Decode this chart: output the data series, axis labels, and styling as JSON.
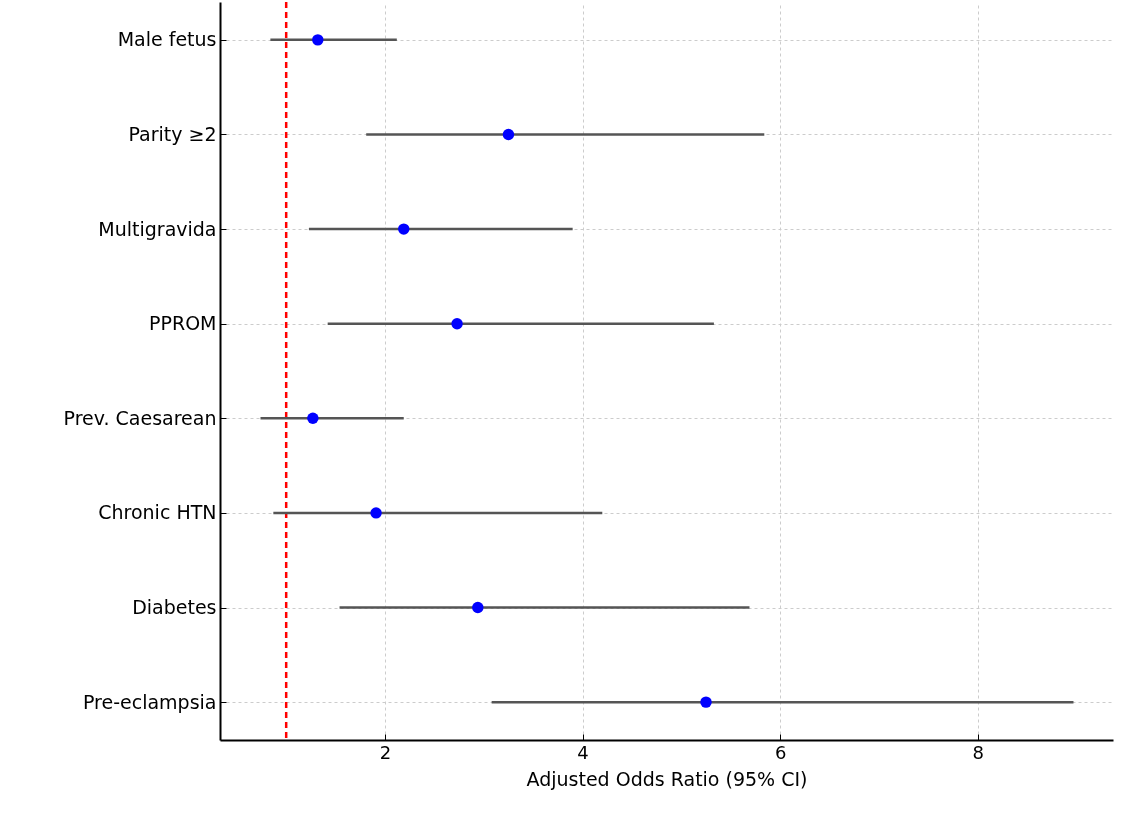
{
  "chart_data": {
    "type": "scatter",
    "orientation": "horizontal",
    "xlabel": "Adjusted Odds Ratio (95% CI)",
    "categories": [
      "Male fetus",
      "Parity ≥2",
      "Multigravida",
      "PPROM",
      "Prev. Caesarean",
      "Chronic HTN",
      "Diabetes",
      "Pre-eclampsia"
    ],
    "series": [
      {
        "color": "#0000ff",
        "values": [
          1.32,
          3.25,
          2.19,
          2.73,
          1.27,
          1.91,
          2.94,
          5.25
        ],
        "errors": [
          [
            0.84,
            2.12
          ],
          [
            1.81,
            5.84
          ],
          [
            1.23,
            3.9
          ],
          [
            1.42,
            5.33
          ],
          [
            0.74,
            2.19
          ],
          [
            0.87,
            4.2
          ],
          [
            1.54,
            5.69
          ],
          [
            3.08,
            8.97
          ]
        ]
      }
    ],
    "xlim": [
      0.33,
      9.37
    ],
    "xticks": [
      2,
      4,
      6,
      8
    ],
    "grid": true,
    "marker": "circle",
    "ref_lines": [
      {
        "axis": "x",
        "value": 1,
        "color": "#ff0000",
        "line_style": "dashed"
      }
    ]
  }
}
